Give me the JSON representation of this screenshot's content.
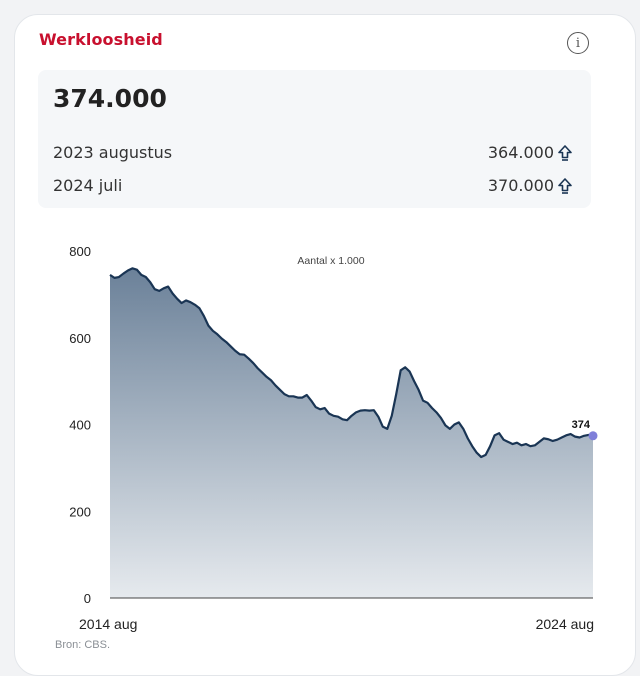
{
  "card": {
    "title": "Werkloosheid",
    "info_icon": "info-icon"
  },
  "summary": {
    "current_value": "374.000",
    "rows": [
      {
        "label": "2023 augustus",
        "value": "364.000",
        "trend": "up",
        "icon": "arrow-up-icon"
      },
      {
        "label": "2024 juli",
        "value": "370.000",
        "trend": "up",
        "icon": "arrow-up-icon"
      }
    ]
  },
  "source": "Bron: CBS.",
  "colors": {
    "title": "#c8102e",
    "line": "#1a3554",
    "area_top": "#6b8199",
    "area_bottom": "#e6eaee",
    "last_point": "#7f7fd9"
  },
  "chart_data": {
    "type": "area",
    "title": "",
    "subtitle": "Aantal x 1.000",
    "xlabel": "",
    "ylabel": "",
    "ylim": [
      0,
      800
    ],
    "yticks": [
      0,
      200,
      400,
      600,
      800
    ],
    "xtick_labels": [
      "2014 aug",
      "2024 aug"
    ],
    "grid": false,
    "last_value_label": "374",
    "series": [
      {
        "values": [
          745,
          738,
          740,
          748,
          755,
          760,
          757,
          745,
          740,
          728,
          712,
          708,
          714,
          718,
          702,
          690,
          680,
          686,
          682,
          676,
          668,
          650,
          628,
          616,
          608,
          598,
          590,
          580,
          570,
          562,
          561,
          552,
          542,
          530,
          520,
          510,
          502,
          490,
          480,
          470,
          465,
          465,
          462,
          462,
          468,
          455,
          440,
          435,
          438,
          425,
          420,
          418,
          412,
          410,
          420,
          428,
          432,
          433,
          432,
          433,
          418,
          395,
          390,
          420,
          470,
          525,
          532,
          522,
          500,
          480,
          455,
          450,
          438,
          428,
          415,
          398,
          390,
          400,
          405,
          390,
          368,
          350,
          335,
          325,
          330,
          350,
          375,
          380,
          365,
          360,
          355,
          358,
          352,
          355,
          350,
          352,
          360,
          368,
          366,
          362,
          365,
          370,
          375,
          378,
          372,
          370,
          374,
          376,
          374
        ]
      }
    ]
  }
}
